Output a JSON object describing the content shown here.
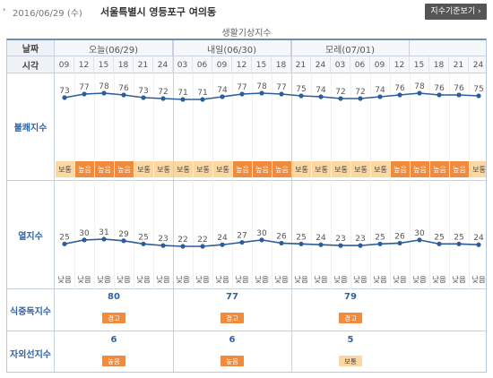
{
  "header": {
    "bullet": "›",
    "date": "2016/06/29 (수)",
    "location": "서울특별시 영등포구 여의동",
    "index_button": "지수기준보기 ›"
  },
  "subtitle": "생활기상지수",
  "table": {
    "date_label": "날짜",
    "time_label": "시각",
    "days": [
      "오늘(06/29)",
      "내일(06/30)",
      "모레(07/01)"
    ],
    "times": [
      "09",
      "12",
      "15",
      "18",
      "21",
      "24",
      "03",
      "06",
      "09",
      "12",
      "15",
      "18",
      "21",
      "24",
      "03",
      "06",
      "09",
      "12",
      "15",
      "18",
      "21",
      "24"
    ]
  },
  "discomfort": {
    "label": "불쾌지수",
    "values": [
      73,
      77,
      78,
      76,
      73,
      72,
      71,
      71,
      74,
      77,
      78,
      77,
      75,
      74,
      72,
      72,
      74,
      76,
      78,
      76,
      76,
      75
    ],
    "levels": [
      "보통",
      "높음",
      "높음",
      "높음",
      "보통",
      "보통",
      "보통",
      "보통",
      "보통",
      "높음",
      "높음",
      "높음",
      "보통",
      "보통",
      "보통",
      "보통",
      "보통",
      "높음",
      "높음",
      "높음",
      "높음",
      "보통"
    ],
    "colors": {
      "mid": "#fbd7a4",
      "high": "#f08a3c"
    }
  },
  "heat": {
    "label": "열지수",
    "values": [
      25,
      30,
      31,
      29,
      25,
      23,
      22,
      22,
      24,
      27,
      30,
      26,
      25,
      24,
      23,
      23,
      25,
      26,
      30,
      25,
      25,
      24
    ],
    "levels": [
      "낮음",
      "낮음",
      "낮음",
      "낮음",
      "낮음",
      "낮음",
      "낮음",
      "낮음",
      "낮음",
      "낮음",
      "낮음",
      "낮음",
      "낮음",
      "낮음",
      "낮음",
      "낮음",
      "낮음",
      "낮음",
      "낮음",
      "낮음",
      "낮음",
      "낮음"
    ]
  },
  "food_poisoning": {
    "label": "식중독지수",
    "days": [
      {
        "value": "80",
        "level": "경고",
        "type": "high"
      },
      {
        "value": "77",
        "level": "경고",
        "type": "high"
      },
      {
        "value": "79",
        "level": "경고",
        "type": "high"
      }
    ]
  },
  "uv": {
    "label": "자외선지수",
    "days": [
      {
        "value": "6",
        "level": "높음",
        "type": "high"
      },
      {
        "value": "6",
        "level": "높음",
        "type": "high"
      },
      {
        "value": "5",
        "level": "보통",
        "type": "mid"
      }
    ]
  },
  "line_color": "#2b5d9b"
}
